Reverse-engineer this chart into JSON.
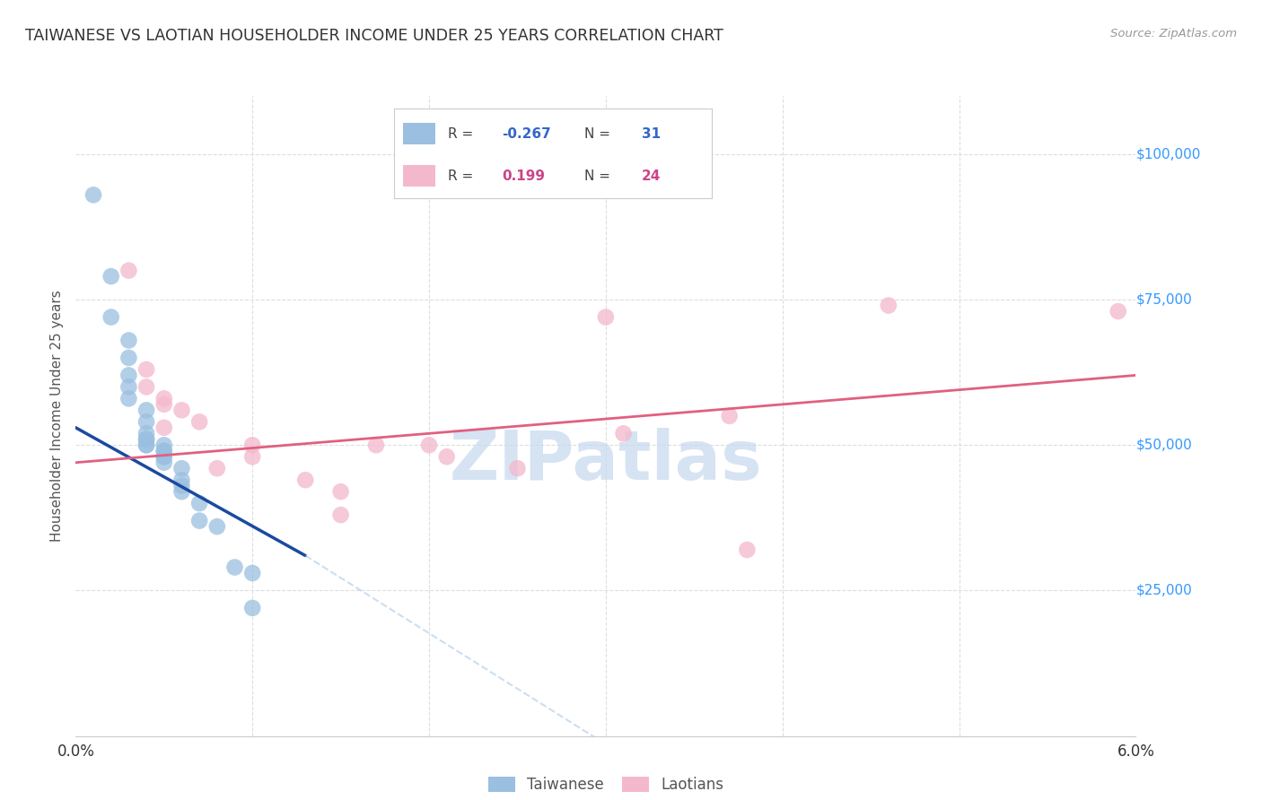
{
  "title": "TAIWANESE VS LAOTIAN HOUSEHOLDER INCOME UNDER 25 YEARS CORRELATION CHART",
  "source": "Source: ZipAtlas.com",
  "ylabel": "Householder Income Under 25 years",
  "watermark": "ZIPatlas",
  "xlim": [
    0.0,
    0.06
  ],
  "ylim": [
    0,
    110000
  ],
  "yticks": [
    0,
    25000,
    50000,
    75000,
    100000
  ],
  "ytick_labels": [
    "",
    "$25,000",
    "$50,000",
    "$75,000",
    "$100,000"
  ],
  "grid_color": "#dddddd",
  "bg_color": "#ffffff",
  "blue_scatter": {
    "x": [
      0.001,
      0.002,
      0.002,
      0.003,
      0.003,
      0.003,
      0.003,
      0.003,
      0.004,
      0.004,
      0.004,
      0.004,
      0.004,
      0.004,
      0.004,
      0.005,
      0.005,
      0.005,
      0.005,
      0.005,
      0.005,
      0.006,
      0.006,
      0.006,
      0.006,
      0.007,
      0.007,
      0.008,
      0.009,
      0.01,
      0.01
    ],
    "y": [
      93000,
      79000,
      72000,
      68000,
      65000,
      62000,
      60000,
      58000,
      56000,
      54000,
      52000,
      51000,
      51000,
      50000,
      50000,
      50000,
      49000,
      49000,
      48000,
      48000,
      47000,
      46000,
      44000,
      43000,
      42000,
      40000,
      37000,
      36000,
      29000,
      28000,
      22000
    ]
  },
  "pink_scatter": {
    "x": [
      0.003,
      0.004,
      0.004,
      0.005,
      0.005,
      0.005,
      0.006,
      0.007,
      0.008,
      0.01,
      0.01,
      0.013,
      0.015,
      0.015,
      0.017,
      0.02,
      0.021,
      0.025,
      0.03,
      0.031,
      0.037,
      0.038,
      0.046,
      0.059
    ],
    "y": [
      80000,
      63000,
      60000,
      58000,
      57000,
      53000,
      56000,
      54000,
      46000,
      50000,
      48000,
      44000,
      42000,
      38000,
      50000,
      50000,
      48000,
      46000,
      72000,
      52000,
      55000,
      32000,
      74000,
      73000
    ]
  },
  "blue_line_solid": {
    "x": [
      0.0,
      0.013
    ],
    "y": [
      53000,
      31000
    ]
  },
  "blue_line_dashed": {
    "x": [
      0.013,
      0.045
    ],
    "y": [
      31000,
      -30000
    ]
  },
  "pink_line": {
    "x": [
      0.0,
      0.06
    ],
    "y": [
      47000,
      62000
    ]
  },
  "blue_scatter_color": "#9abfe0",
  "pink_scatter_color": "#f4b8cc",
  "blue_line_color": "#1a4aa0",
  "blue_dashed_color": "#aac8e8",
  "pink_line_color": "#e06080",
  "title_color": "#333333",
  "source_color": "#999999",
  "axis_label_color": "#555555",
  "right_ytick_color": "#3399ff",
  "xtick_color": "#333333",
  "legend_r_color": "#3366cc",
  "legend_r2_color": "#cc4488",
  "legend_n_color": "#3366cc",
  "legend_n2_color": "#cc4488",
  "watermark_color": "#c5d8ee",
  "bottom_legend_color": "#555555"
}
